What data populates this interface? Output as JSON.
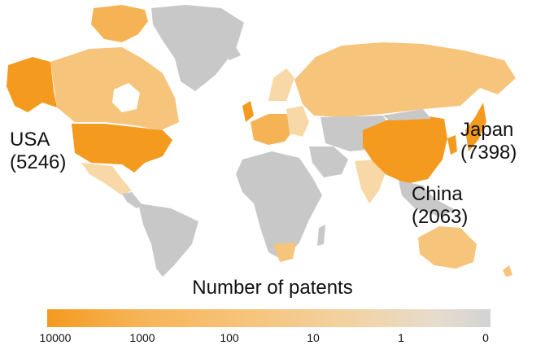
{
  "labels": {
    "usa": {
      "name": "USA",
      "count": "(5246)"
    },
    "china": {
      "name": "China",
      "count": "(2063)"
    },
    "japan": {
      "name": "Japan",
      "count": "(7398)"
    }
  },
  "legend": {
    "title": "Number of patents",
    "ticks": [
      "10000",
      "1000",
      "100",
      "10",
      "1",
      "0"
    ]
  },
  "colors": {
    "high": "#f39a1f",
    "mid": "#f6c47a",
    "low": "#f7d8a6",
    "none": "#c8c8c8"
  }
}
